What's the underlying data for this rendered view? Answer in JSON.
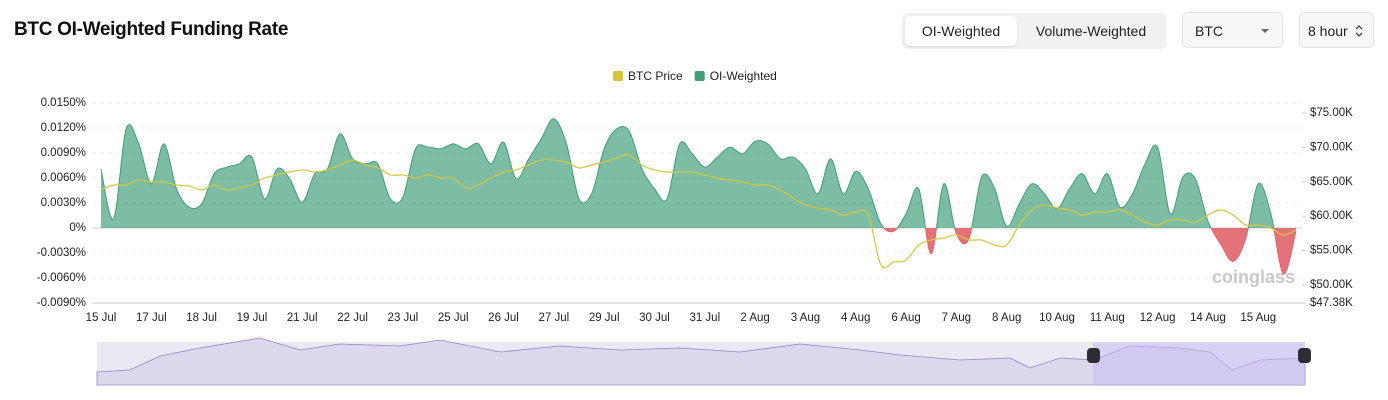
{
  "controls": {
    "tabs": [
      "OI-Weighted",
      "Volume-Weighted"
    ],
    "symbol": "BTC",
    "interval": "8 hour"
  },
  "chart_data": {
    "type": "area",
    "title": "BTC OI-Weighted Funding Rate",
    "watermark": "coinglass",
    "categories": [
      "15 Jul",
      null,
      null,
      null,
      "17 Jul",
      null,
      null,
      null,
      "18 Jul",
      null,
      null,
      null,
      "19 Jul",
      null,
      null,
      null,
      "21 Jul",
      null,
      null,
      null,
      "22 Jul",
      null,
      null,
      null,
      "23 Jul",
      null,
      null,
      null,
      "25 Jul",
      null,
      null,
      null,
      "26 Jul",
      null,
      null,
      null,
      "27 Jul",
      null,
      null,
      null,
      "29 Jul",
      null,
      null,
      null,
      "30 Jul",
      null,
      null,
      null,
      "31 Jul",
      null,
      null,
      null,
      "2 Aug",
      null,
      null,
      null,
      "3 Aug",
      null,
      null,
      null,
      "4 Aug",
      null,
      null,
      null,
      "6 Aug",
      null,
      null,
      null,
      "7 Aug",
      null,
      null,
      null,
      "8 Aug",
      null,
      null,
      null,
      "10 Aug",
      null,
      null,
      null,
      "11 Aug",
      null,
      null,
      null,
      "12 Aug",
      null,
      null,
      null,
      "14 Aug",
      null,
      null,
      null,
      "15 Aug",
      null,
      null,
      null
    ],
    "series": [
      {
        "name": "BTC Price",
        "color": "#d6c53c",
        "axis": "y2",
        "values": [
          63810,
          64530,
          64530,
          65260,
          64970,
          64970,
          64530,
          64390,
          63810,
          64530,
          63810,
          64100,
          64530,
          65550,
          65990,
          66420,
          66720,
          66420,
          66720,
          67440,
          68170,
          67440,
          67010,
          65990,
          65990,
          65550,
          65990,
          65550,
          65550,
          64100,
          64530,
          65550,
          66420,
          66720,
          67440,
          68170,
          68170,
          67880,
          67010,
          67440,
          67880,
          68460,
          68900,
          67440,
          66720,
          66420,
          66420,
          66420,
          65990,
          65550,
          65260,
          64970,
          64530,
          64530,
          63810,
          62650,
          61630,
          61190,
          60900,
          60170,
          60610,
          60170,
          52910,
          53340,
          53630,
          55810,
          56540,
          56830,
          57270,
          56540,
          56540,
          55810,
          55810,
          58720,
          60900,
          61630,
          61190,
          60900,
          60170,
          60610,
          60610,
          60900,
          60170,
          59160,
          58720,
          59450,
          59450,
          59160,
          60170,
          60900,
          60170,
          58720,
          58720,
          58280,
          57270,
          57990
        ]
      },
      {
        "name": "OI-Weighted",
        "color": "#3f9e77",
        "negative_color": "#e0646a",
        "values": [
          0.0071,
          0.0011,
          0.0119,
          0.0101,
          0.0053,
          0.0101,
          0.0047,
          0.0025,
          0.0029,
          0.0065,
          0.0073,
          0.0077,
          0.0085,
          0.0035,
          0.0071,
          0.0059,
          0.0031,
          0.0065,
          0.0071,
          0.0113,
          0.0083,
          0.0077,
          0.0077,
          0.0035,
          0.0037,
          0.0095,
          0.0097,
          0.0095,
          0.0101,
          0.0095,
          0.0101,
          0.0077,
          0.0103,
          0.0059,
          0.0083,
          0.0107,
          0.0131,
          0.0101,
          0.0035,
          0.0041,
          0.0095,
          0.0119,
          0.0116,
          0.0071,
          0.0047,
          0.0035,
          0.0101,
          0.0089,
          0.0073,
          0.0085,
          0.0097,
          0.0089,
          0.0104,
          0.0101,
          0.0083,
          0.0085,
          0.0071,
          0.0041,
          0.0083,
          0.0041,
          0.0068,
          0.0047,
          0.0005,
          -0.0004,
          0.0017,
          0.0047,
          -0.0031,
          0.0053,
          -0.0007,
          -0.0013,
          0.0061,
          0.0049,
          0.0002,
          0.0029,
          0.0053,
          0.0041,
          0.0023,
          0.0047,
          0.0065,
          0.0041,
          0.0065,
          0.0025,
          0.0041,
          0.0077,
          0.0097,
          0.0017,
          0.0061,
          0.0059,
          0.0008,
          -0.0019,
          -0.004,
          -0.0013,
          0.0053,
          0.0017,
          -0.0055,
          -0.0004
        ]
      }
    ],
    "ylim": [
      -0.009,
      0.015
    ],
    "yticks": [
      {
        "value": 0.015,
        "label": "0.0150%"
      },
      {
        "value": 0.012,
        "label": "0.0120%"
      },
      {
        "value": 0.009,
        "label": "0.0090%"
      },
      {
        "value": 0.006,
        "label": "0.0060%"
      },
      {
        "value": 0.003,
        "label": "0.0030%"
      },
      {
        "value": 0,
        "label": "0%"
      },
      {
        "value": -0.003,
        "label": "-0.0030%"
      },
      {
        "value": -0.006,
        "label": "-0.0060%"
      },
      {
        "value": -0.009,
        "label": "-0.0090%"
      }
    ],
    "y2lim": [
      47380,
      76450
    ],
    "y2ticks": [
      {
        "value": 75000,
        "label": "$75.00K"
      },
      {
        "value": 70000,
        "label": "$70.00K"
      },
      {
        "value": 65000,
        "label": "$65.00K"
      },
      {
        "value": 60000,
        "label": "$60.00K"
      },
      {
        "value": 55000,
        "label": "$55.00K"
      },
      {
        "value": 50000,
        "label": "$50.00K"
      },
      {
        "value": 47380,
        "label": "$47.38K"
      }
    ],
    "grid": true,
    "legend": "top"
  }
}
